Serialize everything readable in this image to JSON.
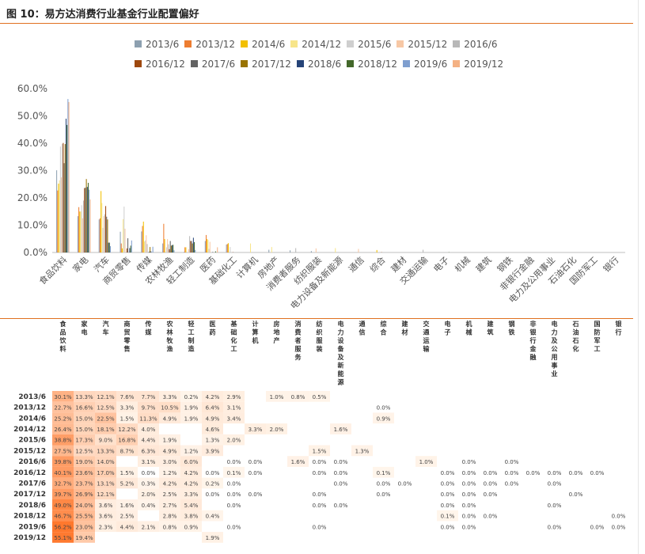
{
  "title": "图 10：易方达消费行业基金行业配置偏好",
  "chart_data": [
    {
      "type": "bar",
      "ylim": [
        0,
        0.6
      ],
      "ytick_labels": [
        "0.0%",
        "10.0%",
        "20.0%",
        "30.0%",
        "40.0%",
        "50.0%",
        "60.0%"
      ],
      "ytick_values": [
        0,
        0.1,
        0.2,
        0.3,
        0.4,
        0.5,
        0.6
      ],
      "grid": false,
      "legend_position": "top",
      "categories": [
        "食品饮料",
        "家电",
        "汽车",
        "商贸零售",
        "传媒",
        "农林牧渔",
        "轻工制造",
        "医药",
        "基础化工",
        "计算机",
        "房地产",
        "消费者服务",
        "纺织服装",
        "电力设备及新能源",
        "通信",
        "综合",
        "建材",
        "交通运输",
        "电子",
        "机械",
        "建筑",
        "钢铁",
        "非银行金融",
        "电力及公用事业",
        "石油石化",
        "国防军工",
        "银行"
      ],
      "series": [
        {
          "name": "2013/6",
          "color": "#8da0b0",
          "values": [
            0.301,
            0.133,
            0.121,
            0.076,
            0.077,
            0.033,
            0.002,
            0.042,
            0.029,
            0,
            0.01,
            0.008,
            0.005,
            0,
            0,
            0,
            0,
            0,
            0,
            0,
            0,
            0,
            0,
            0,
            0,
            0,
            0
          ]
        },
        {
          "name": "2013/12",
          "color": "#ed7d31",
          "values": [
            0.227,
            0.166,
            0.125,
            0.033,
            0.097,
            0.105,
            0.019,
            0.064,
            0.031,
            0,
            0,
            0,
            0,
            0,
            0,
            0.0,
            0,
            0,
            0,
            0,
            0,
            0,
            0,
            0,
            0,
            0,
            0
          ]
        },
        {
          "name": "2014/6",
          "color": "#f2c000",
          "values": [
            0.252,
            0.15,
            0.225,
            0.015,
            0.113,
            0.049,
            0.019,
            0.049,
            0.034,
            0,
            0,
            0,
            0,
            0,
            0,
            0.009,
            0,
            0,
            0,
            0,
            0,
            0,
            0,
            0,
            0,
            0,
            0
          ]
        },
        {
          "name": "2014/12",
          "color": "#f7e58a",
          "values": [
            0.264,
            0.15,
            0.181,
            0.122,
            0.04,
            0,
            0,
            0.046,
            0,
            0.033,
            0.02,
            0,
            0,
            0.016,
            0,
            0,
            0,
            0,
            0,
            0,
            0,
            0,
            0,
            0,
            0,
            0,
            0
          ]
        },
        {
          "name": "2015/6",
          "color": "#cfcfcf",
          "values": [
            0.388,
            0.173,
            0.09,
            0.168,
            0.044,
            0.019,
            0,
            0.013,
            0.02,
            0,
            0,
            0,
            0,
            0,
            0,
            0,
            0,
            0,
            0,
            0,
            0,
            0,
            0,
            0,
            0,
            0,
            0
          ]
        },
        {
          "name": "2015/12",
          "color": "#f7c8a5",
          "values": [
            0.275,
            0.125,
            0.133,
            0.087,
            0.063,
            0.049,
            0.012,
            0.039,
            0,
            0,
            0,
            0,
            0.015,
            0,
            0.013,
            0,
            0,
            0,
            0,
            0,
            0,
            0,
            0,
            0,
            0,
            0,
            0
          ]
        },
        {
          "name": "2016/6",
          "color": "#b8b8b8",
          "values": [
            0.398,
            0.19,
            0.14,
            0,
            0.031,
            0.03,
            0.06,
            0,
            0,
            0,
            0,
            0.016,
            0,
            0,
            0,
            0,
            0,
            0.01,
            0,
            0,
            0,
            0,
            0,
            0,
            0,
            0,
            0
          ]
        },
        {
          "name": "2016/12",
          "color": "#9e480e",
          "values": [
            0.401,
            0.236,
            0.17,
            0.015,
            0,
            0.012,
            0.042,
            0,
            0.001,
            0,
            0,
            0,
            0,
            0,
            0,
            0.001,
            0,
            0,
            0,
            0,
            0,
            0,
            0,
            0,
            0,
            0,
            0
          ]
        },
        {
          "name": "2017/6",
          "color": "#636363",
          "values": [
            0.327,
            0.237,
            0.131,
            0.052,
            0.003,
            0.042,
            0.042,
            0.002,
            0,
            0,
            0,
            0,
            0,
            0,
            0,
            0,
            0,
            0,
            0,
            0,
            0,
            0,
            0,
            0,
            0,
            0,
            0
          ]
        },
        {
          "name": "2017/12",
          "color": "#997300",
          "values": [
            0.397,
            0.269,
            0.121,
            0,
            0.02,
            0.025,
            0.033,
            0,
            0,
            0,
            0,
            0,
            0,
            0,
            0,
            0,
            0,
            0,
            0,
            0,
            0,
            0,
            0,
            0,
            0,
            0,
            0
          ]
        },
        {
          "name": "2018/6",
          "color": "#264478",
          "values": [
            0.49,
            0.24,
            0.036,
            0.016,
            0.004,
            0.027,
            0.054,
            0,
            0,
            0,
            0,
            0,
            0,
            0,
            0,
            0,
            0,
            0,
            0,
            0,
            0,
            0,
            0,
            0,
            0,
            0,
            0
          ]
        },
        {
          "name": "2018/12",
          "color": "#43682b",
          "values": [
            0.467,
            0.255,
            0.036,
            0.025,
            0,
            0.028,
            0.038,
            0.004,
            0,
            0,
            0,
            0,
            0,
            0,
            0,
            0,
            0,
            0,
            0.001,
            0,
            0,
            0,
            0,
            0,
            0,
            0,
            0
          ]
        },
        {
          "name": "2019/6",
          "color": "#7f9fcf",
          "values": [
            0.562,
            0.23,
            0.023,
            0.044,
            0.021,
            0.008,
            0.009,
            0,
            0,
            0,
            0,
            0,
            0,
            0,
            0,
            0,
            0,
            0,
            0,
            0,
            0,
            0,
            0,
            0,
            0,
            0,
            0
          ]
        },
        {
          "name": "2019/12",
          "color": "#f4b183",
          "values": [
            0.551,
            0.194,
            0,
            0,
            0,
            0,
            0,
            0.019,
            0,
            0,
            0,
            0,
            0,
            0,
            0,
            0,
            0,
            0,
            0,
            0,
            0,
            0,
            0,
            0,
            0,
            0,
            0
          ]
        }
      ]
    },
    {
      "type": "heatmap",
      "columns": [
        "食品饮料",
        "家电",
        "汽车",
        "商贸零售",
        "传媒",
        "农林牧渔",
        "轻工制造",
        "医药",
        "基础化工",
        "计算机",
        "房地产",
        "消费者服务",
        "纺织服装",
        "电力设备及新能源",
        "通信",
        "综合",
        "建材",
        "交通运输",
        "电子",
        "机械",
        "建筑",
        "钢铁",
        "非银行金融",
        "电力及公用事业",
        "石油石化",
        "国防军工",
        "银行"
      ],
      "rows": [
        "2013/6",
        "2013/12",
        "2014/6",
        "2014/12",
        "2015/6",
        "2015/12",
        "2016/6",
        "2016/12",
        "2017/6",
        "2017/12",
        "2018/6",
        "2018/12",
        "2019/6",
        "2019/12"
      ],
      "cells": [
        [
          "30.1%",
          "13.3%",
          "12.1%",
          "7.6%",
          "7.7%",
          "3.3%",
          "0.2%",
          "4.2%",
          "2.9%",
          "",
          "1.0%",
          "0.8%",
          "0.5%",
          "",
          "",
          "",
          "",
          "",
          "",
          "",
          "",
          "",
          "",
          "",
          "",
          "",
          ""
        ],
        [
          "22.7%",
          "16.6%",
          "12.5%",
          "3.3%",
          "9.7%",
          "10.5%",
          "1.9%",
          "6.4%",
          "3.1%",
          "",
          "",
          "",
          "",
          "",
          "",
          "0.0%",
          "",
          "",
          "",
          "",
          "",
          "",
          "",
          "",
          "",
          "",
          ""
        ],
        [
          "25.2%",
          "15.0%",
          "22.5%",
          "1.5%",
          "11.3%",
          "4.9%",
          "1.9%",
          "4.9%",
          "3.4%",
          "",
          "",
          "",
          "",
          "",
          "",
          "0.9%",
          "",
          "",
          "",
          "",
          "",
          "",
          "",
          "",
          "",
          "",
          ""
        ],
        [
          "26.4%",
          "15.0%",
          "18.1%",
          "12.2%",
          "4.0%",
          "",
          "",
          "4.6%",
          "",
          "3.3%",
          "2.0%",
          "",
          "",
          "1.6%",
          "",
          "",
          "",
          "",
          "",
          "",
          "",
          "",
          "",
          "",
          "",
          "",
          ""
        ],
        [
          "38.8%",
          "17.3%",
          "9.0%",
          "16.8%",
          "4.4%",
          "1.9%",
          "",
          "1.3%",
          "2.0%",
          "",
          "",
          "",
          "",
          "",
          "",
          "",
          "",
          "",
          "",
          "",
          "",
          "",
          "",
          "",
          "",
          "",
          ""
        ],
        [
          "27.5%",
          "12.5%",
          "13.3%",
          "8.7%",
          "6.3%",
          "4.9%",
          "1.2%",
          "3.9%",
          "",
          "",
          "",
          "",
          "1.5%",
          "",
          "1.3%",
          "",
          "",
          "",
          "",
          "",
          "",
          "",
          "",
          "",
          "",
          "",
          ""
        ],
        [
          "39.8%",
          "19.0%",
          "14.0%",
          "",
          "3.1%",
          "3.0%",
          "6.0%",
          "",
          "0.0%",
          "0.0%",
          "",
          "1.6%",
          "0.0%",
          "0.0%",
          "",
          "",
          "",
          "1.0%",
          "",
          "0.0%",
          "",
          "0.0%",
          "",
          "",
          "",
          "",
          ""
        ],
        [
          "40.1%",
          "23.6%",
          "17.0%",
          "1.5%",
          "0.0%",
          "1.2%",
          "4.2%",
          "0.0%",
          "0.1%",
          "0.0%",
          "",
          "",
          "0.0%",
          "0.0%",
          "",
          "0.1%",
          "",
          "",
          "0.0%",
          "0.0%",
          "0.0%",
          "0.0%",
          "0.0%",
          "0.0%",
          "0.0%",
          "0.0%",
          ""
        ],
        [
          "32.7%",
          "23.7%",
          "13.1%",
          "5.2%",
          "0.3%",
          "4.2%",
          "4.2%",
          "0.2%",
          "0.0%",
          "",
          "",
          "",
          "",
          "0.0%",
          "",
          "0.0%",
          "0.0%",
          "",
          "0.0%",
          "0.0%",
          "0.0%",
          "0.0%",
          "",
          "0.0%",
          "",
          "",
          ""
        ],
        [
          "39.7%",
          "26.9%",
          "12.1%",
          "",
          "2.0%",
          "2.5%",
          "3.3%",
          "0.0%",
          "0.0%",
          "0.0%",
          "",
          "",
          "0.0%",
          "",
          "",
          "0.0%",
          "",
          "",
          "0.0%",
          "0.0%",
          "0.0%",
          "",
          "",
          "",
          "0.0%",
          "",
          ""
        ],
        [
          "49.0%",
          "24.0%",
          "3.6%",
          "1.6%",
          "0.4%",
          "2.7%",
          "5.4%",
          "",
          "0.0%",
          "",
          "",
          "",
          "0.0%",
          "0.0%",
          "",
          "",
          "",
          "",
          "0.0%",
          "0.0%",
          "",
          "",
          "",
          "0.0%",
          "",
          "",
          ""
        ],
        [
          "46.7%",
          "25.5%",
          "3.6%",
          "2.5%",
          "",
          "2.8%",
          "3.8%",
          "0.4%",
          "",
          "",
          "",
          "",
          "",
          "",
          "",
          "",
          "",
          "",
          "0.1%",
          "0.0%",
          "0.0%",
          "",
          "",
          "",
          "",
          "",
          "0.0%"
        ],
        [
          "56.2%",
          "23.0%",
          "2.3%",
          "4.4%",
          "2.1%",
          "0.8%",
          "0.9%",
          "",
          "0.0%",
          "",
          "",
          "",
          "0.0%",
          "",
          "",
          "",
          "",
          "",
          "0.0%",
          "0.0%",
          "",
          "",
          "",
          "0.0%",
          "",
          "0.0%",
          "0.0%"
        ],
        [
          "55.1%",
          "19.4%",
          "",
          "",
          "",
          "",
          "",
          "1.9%",
          "",
          "",
          "",
          "",
          "",
          "",
          "",
          "",
          "",
          "",
          "",
          "",
          "",
          "",
          "",
          "",
          "",
          "",
          ""
        ]
      ]
    }
  ]
}
